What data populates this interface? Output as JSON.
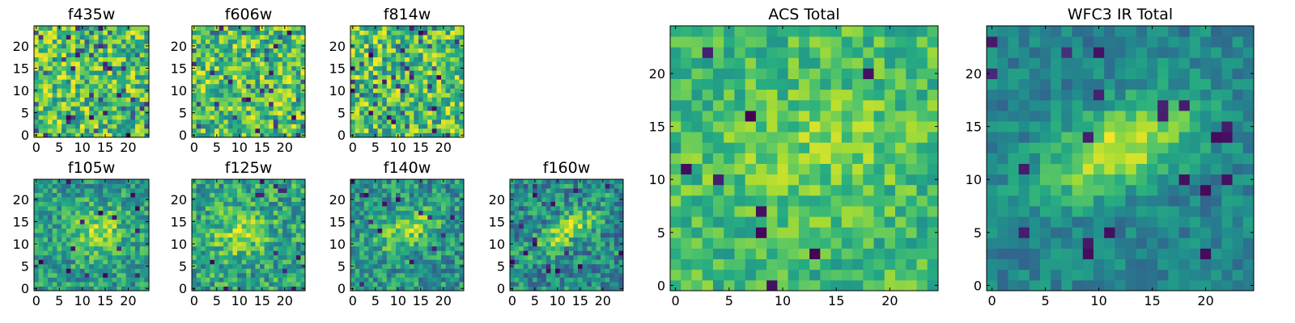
{
  "colormap": "viridis",
  "colors": {
    "low": "#440154",
    "mid": "#21918c",
    "high": "#fde725",
    "frame": "#000000",
    "background": "#ffffff"
  },
  "chart_data": [
    {
      "id": "f435w",
      "type": "heatmap",
      "title": "f435w",
      "grid_size": 25,
      "xticks": [
        0,
        5,
        10,
        15,
        20
      ],
      "yticks": [
        0,
        5,
        10,
        15,
        20
      ],
      "xlim": [
        0,
        24
      ],
      "ylim": [
        0,
        24
      ],
      "signal": "none",
      "grid": false
    },
    {
      "id": "f606w",
      "type": "heatmap",
      "title": "f606w",
      "grid_size": 25,
      "xticks": [
        0,
        5,
        10,
        15,
        20
      ],
      "yticks": [
        0,
        5,
        10,
        15,
        20
      ],
      "xlim": [
        0,
        24
      ],
      "ylim": [
        0,
        24
      ],
      "signal": "none",
      "grid": false
    },
    {
      "id": "f814w",
      "type": "heatmap",
      "title": "f814w",
      "grid_size": 25,
      "xticks": [
        0,
        5,
        10,
        15,
        20
      ],
      "yticks": [
        0,
        5,
        10,
        15,
        20
      ],
      "xlim": [
        0,
        24
      ],
      "ylim": [
        0,
        24
      ],
      "signal": "none",
      "grid": false
    },
    {
      "id": "f105w",
      "type": "heatmap",
      "title": "f105w",
      "grid_size": 25,
      "xticks": [
        0,
        5,
        10,
        15,
        20
      ],
      "yticks": [
        0,
        5,
        10,
        15,
        20
      ],
      "xlim": [
        0,
        24
      ],
      "ylim": [
        0,
        24
      ],
      "signal": "diffuse blob",
      "blob_center": [
        13,
        13
      ],
      "grid": false
    },
    {
      "id": "f125w",
      "type": "heatmap",
      "title": "f125w",
      "grid_size": 25,
      "xticks": [
        0,
        5,
        10,
        15,
        20
      ],
      "yticks": [
        0,
        5,
        10,
        15,
        20
      ],
      "xlim": [
        0,
        24
      ],
      "ylim": [
        0,
        24
      ],
      "signal": "diffuse blob",
      "blob_center": [
        10,
        12
      ],
      "grid": false
    },
    {
      "id": "f140w",
      "type": "heatmap",
      "title": "f140w",
      "grid_size": 25,
      "xticks": [
        0,
        5,
        10,
        15,
        20
      ],
      "yticks": [
        0,
        5,
        10,
        15,
        20
      ],
      "xlim": [
        0,
        24
      ],
      "ylim": [
        0,
        24
      ],
      "signal": "elongated blob",
      "blob_center": [
        12,
        13
      ],
      "grid": false
    },
    {
      "id": "f160w",
      "type": "heatmap",
      "title": "f160w",
      "grid_size": 25,
      "xticks": [
        0,
        5,
        10,
        15,
        20
      ],
      "yticks": [
        0,
        5,
        10,
        15,
        20
      ],
      "xlim": [
        0,
        24
      ],
      "ylim": [
        0,
        24
      ],
      "signal": "elongated blob",
      "blob_center": [
        12,
        13
      ],
      "grid": false
    },
    {
      "id": "acs_total",
      "type": "heatmap",
      "title": "ACS Total",
      "grid_size": 25,
      "xticks": [
        0,
        5,
        10,
        15,
        20
      ],
      "yticks": [
        0,
        5,
        10,
        15,
        20
      ],
      "xlim": [
        0,
        24
      ],
      "ylim": [
        0,
        24
      ],
      "signal": "faint blob",
      "blob_center": [
        13,
        13
      ],
      "grid": false
    },
    {
      "id": "wfc3_ir_total",
      "type": "heatmap",
      "title": "WFC3 IR Total",
      "grid_size": 25,
      "xticks": [
        0,
        5,
        10,
        15,
        20
      ],
      "yticks": [
        0,
        5,
        10,
        15,
        20
      ],
      "xlim": [
        0,
        24
      ],
      "ylim": [
        0,
        24
      ],
      "signal": "bright elongated blob",
      "blob_center": [
        12,
        13
      ],
      "grid": false
    }
  ]
}
